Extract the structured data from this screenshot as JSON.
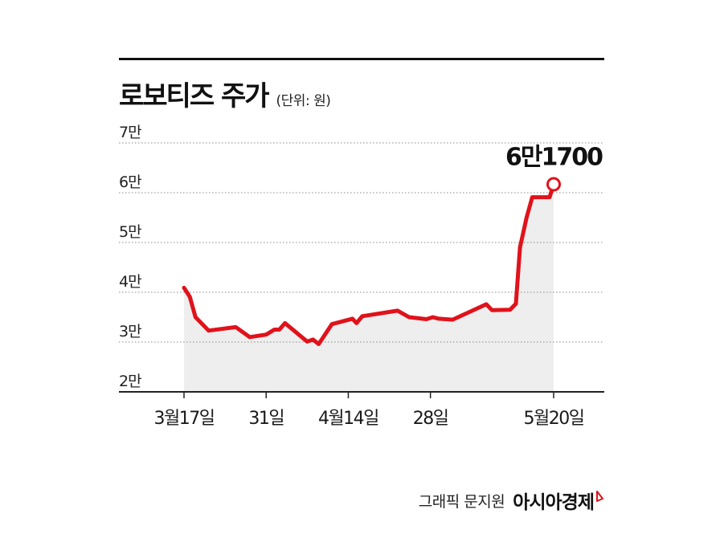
{
  "header": {
    "title": "로보티즈 주가",
    "unit": "(단위: 원)"
  },
  "footer": {
    "credit": "그래픽 문지원",
    "source": "아시아경제"
  },
  "colors": {
    "line": "#e0121b",
    "area": "#eeeeee",
    "grid": "#888888",
    "axis": "#222222"
  },
  "chart_data": {
    "type": "area",
    "ylim": [
      20000,
      70000
    ],
    "yticks": [
      {
        "value": 70000,
        "label": "7만"
      },
      {
        "value": 60000,
        "label": "6만"
      },
      {
        "value": 50000,
        "label": "5만"
      },
      {
        "value": 40000,
        "label": "4만"
      },
      {
        "value": 30000,
        "label": "3만"
      },
      {
        "value": 20000,
        "label": "2만"
      }
    ],
    "xlim": [
      0,
      45
    ],
    "xticks": [
      {
        "value": 0,
        "label": "3월17일"
      },
      {
        "value": 10,
        "label": "31일"
      },
      {
        "value": 20,
        "label": "4월14일"
      },
      {
        "value": 30,
        "label": "28일"
      },
      {
        "value": 45,
        "label": "5월20일"
      }
    ],
    "grid": true,
    "series": [
      {
        "x": [
          0,
          0.7,
          1.4,
          3,
          6.3,
          8,
          10,
          11,
          11.6,
          12.3,
          15,
          15.7,
          16.4,
          18,
          20.5,
          21,
          21.7,
          26,
          27.4,
          29.5,
          30.3,
          31,
          32.7,
          36.8,
          37.5,
          39.7,
          40.4,
          40.9,
          41.7,
          42.4,
          44,
          44.5,
          45
        ],
        "values": [
          40900,
          39100,
          35000,
          32300,
          33000,
          31000,
          31500,
          32500,
          32500,
          33800,
          30100,
          30500,
          29600,
          33600,
          34700,
          33800,
          35200,
          36300,
          35000,
          34600,
          35000,
          34700,
          34500,
          37600,
          36400,
          36500,
          37700,
          49000,
          55000,
          59100,
          59100,
          59100,
          61700
        ]
      }
    ],
    "annotations": [
      {
        "x": 45,
        "y": 61700,
        "text": "6만1700"
      }
    ]
  }
}
